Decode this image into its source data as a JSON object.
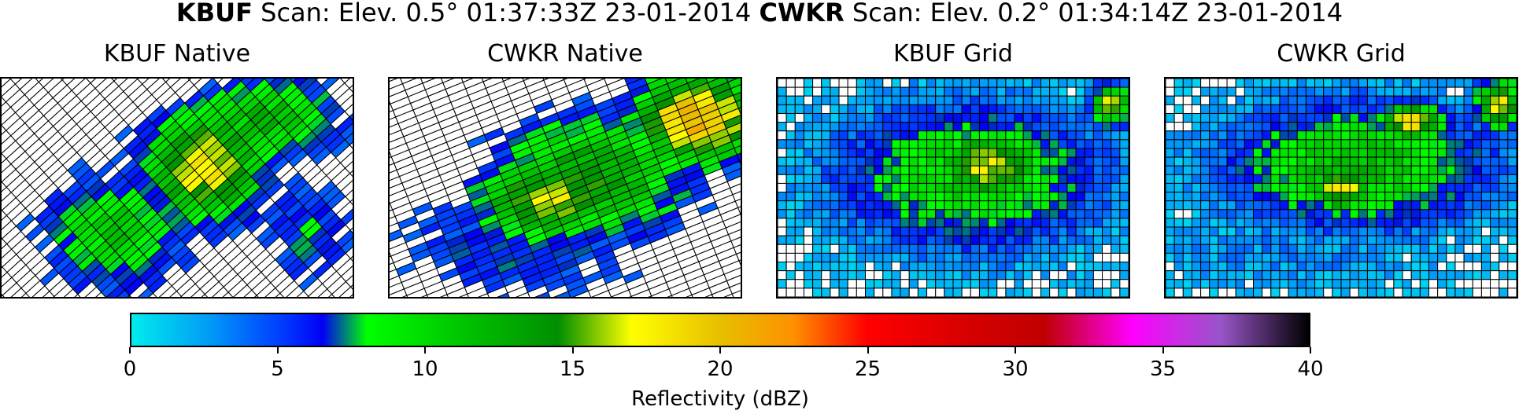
{
  "chart_data": {
    "type": "heatmap",
    "title_parts": [
      {
        "text": "KBUF",
        "bold": true
      },
      {
        "text": " Scan: Elev. 0.5° 01:37:33Z 23-01-2014 ",
        "bold": false
      },
      {
        "text": "CWKR",
        "bold": true
      },
      {
        "text": " Scan: Elev. 0.2° 01:34:14Z 23-01-2014",
        "bold": false
      }
    ],
    "panels": [
      {
        "title": "KBUF Native",
        "kind": "native",
        "rows": 28,
        "cols": 26,
        "anchor": [
          0.55,
          0.42
        ],
        "blobs": [
          {
            "c": [
              0.55,
              0.42
            ],
            "r": [
              0.18,
              0.28
            ],
            "v": 18
          },
          {
            "c": [
              0.3,
              0.72
            ],
            "r": [
              0.22,
              0.3
            ],
            "v": 11
          },
          {
            "c": [
              0.72,
              0.2
            ],
            "r": [
              0.24,
              0.22
            ],
            "v": 12
          },
          {
            "c": [
              0.85,
              0.7
            ],
            "r": [
              0.15,
              0.3
            ],
            "v": 7
          }
        ]
      },
      {
        "title": "CWKR Native",
        "kind": "native",
        "rows": 22,
        "cols": 30,
        "anchor": [
          0.48,
          0.4
        ],
        "blobs": [
          {
            "c": [
              0.55,
              0.45
            ],
            "r": [
              0.3,
              0.3
            ],
            "v": 14
          },
          {
            "c": [
              0.85,
              0.18
            ],
            "r": [
              0.2,
              0.22
            ],
            "v": 21
          },
          {
            "c": [
              0.42,
              0.55
            ],
            "r": [
              0.22,
              0.2
            ],
            "v": 17
          },
          {
            "c": [
              0.35,
              0.75
            ],
            "r": [
              0.4,
              0.3
            ],
            "v": 7
          }
        ]
      },
      {
        "title": "KBUF Grid",
        "kind": "grid",
        "rows": 25,
        "cols": 40,
        "blobs": [
          {
            "c": [
              0.55,
              0.45
            ],
            "r": [
              0.4,
              0.35
            ],
            "v": 11
          },
          {
            "c": [
              0.6,
              0.4
            ],
            "r": [
              0.18,
              0.18
            ],
            "v": 17
          },
          {
            "c": [
              0.15,
              0.2
            ],
            "r": [
              0.2,
              0.2
            ],
            "v": 2
          },
          {
            "c": [
              0.8,
              0.88
            ],
            "r": [
              0.2,
              0.15
            ],
            "v": 2
          },
          {
            "c": [
              0.95,
              0.12
            ],
            "r": [
              0.06,
              0.1
            ],
            "v": 17
          }
        ]
      },
      {
        "title": "CWKR Grid",
        "kind": "grid",
        "rows": 25,
        "cols": 40,
        "blobs": [
          {
            "c": [
              0.55,
              0.4
            ],
            "r": [
              0.4,
              0.3
            ],
            "v": 12
          },
          {
            "c": [
              0.7,
              0.2
            ],
            "r": [
              0.1,
              0.1
            ],
            "v": 18
          },
          {
            "c": [
              0.5,
              0.5
            ],
            "r": [
              0.1,
              0.12
            ],
            "v": 18
          },
          {
            "c": [
              0.95,
              0.12
            ],
            "r": [
              0.07,
              0.12
            ],
            "v": 18
          },
          {
            "c": [
              0.35,
              0.8
            ],
            "r": [
              0.6,
              0.2
            ],
            "v": 3
          }
        ]
      }
    ],
    "colorbar": {
      "label": "Reflectivity (dBZ)",
      "range": [
        0,
        40
      ],
      "ticks": [
        "0",
        "5",
        "10",
        "15",
        "20",
        "25",
        "30",
        "35",
        "40"
      ],
      "stops": [
        {
          "v": 0,
          "color": "#00ecec"
        },
        {
          "v": 2.5,
          "color": "#01a0f6"
        },
        {
          "v": 5,
          "color": "#0040ff"
        },
        {
          "v": 6.5,
          "color": "#0000f6"
        },
        {
          "v": 8,
          "color": "#00ff00"
        },
        {
          "v": 11,
          "color": "#00c800"
        },
        {
          "v": 14.5,
          "color": "#008e00"
        },
        {
          "v": 17,
          "color": "#ffff00"
        },
        {
          "v": 20,
          "color": "#e7c000"
        },
        {
          "v": 22.5,
          "color": "#ff9000"
        },
        {
          "v": 25,
          "color": "#ff0000"
        },
        {
          "v": 28.5,
          "color": "#d60000"
        },
        {
          "v": 31,
          "color": "#c00000"
        },
        {
          "v": 34,
          "color": "#ff00ff"
        },
        {
          "v": 37,
          "color": "#9955c9"
        },
        {
          "v": 40,
          "color": "#000000"
        }
      ]
    }
  }
}
